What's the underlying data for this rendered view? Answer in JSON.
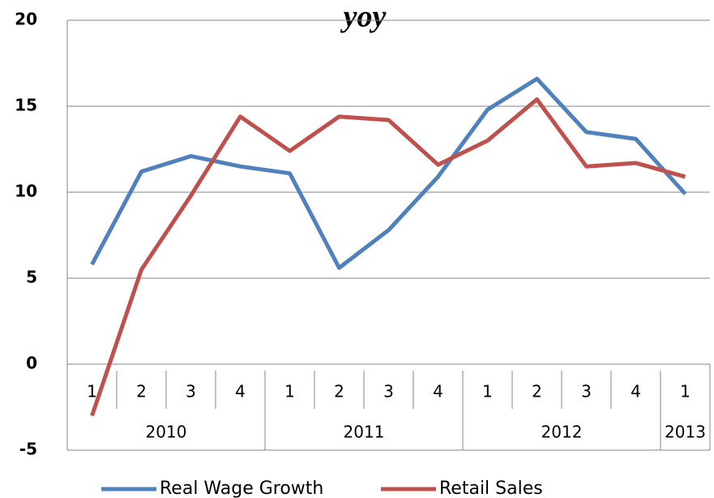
{
  "chart_data": {
    "type": "line",
    "title": "yoy",
    "categories": [
      "1",
      "2",
      "3",
      "4",
      "1",
      "2",
      "3",
      "4",
      "1",
      "2",
      "3",
      "4",
      "1"
    ],
    "year_labels": [
      "2010",
      null,
      null,
      null,
      "2011",
      null,
      null,
      null,
      "2012",
      null,
      null,
      null,
      "2013"
    ],
    "series": [
      {
        "name": "Real Wage Growth",
        "color": "#4f81bd",
        "values": [
          5.8,
          11.2,
          12.1,
          11.5,
          11.1,
          5.6,
          7.8,
          10.9,
          14.8,
          16.6,
          13.5,
          13.1,
          9.9
        ]
      },
      {
        "name": "Retail Sales",
        "color": "#c0504d",
        "values": [
          -3.0,
          5.5,
          9.8,
          14.4,
          12.4,
          14.4,
          14.2,
          11.6,
          13.0,
          15.4,
          11.5,
          11.7,
          10.9
        ]
      }
    ],
    "ylim": [
      -5,
      20
    ],
    "yticks": [
      -5,
      0,
      5,
      10,
      15,
      20
    ],
    "grid": true,
    "legend": "bottom"
  }
}
